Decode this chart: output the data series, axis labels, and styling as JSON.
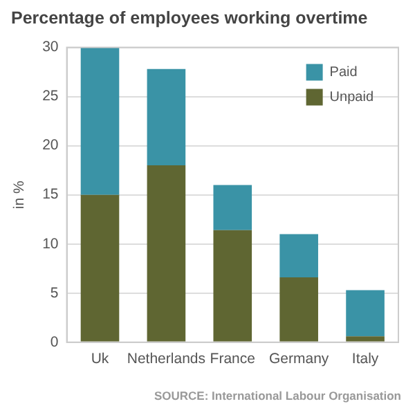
{
  "chart_data": {
    "type": "bar",
    "title": "Percentage of employees working overtime",
    "ylabel": "in %",
    "categories": [
      "Uk",
      "Netherlands",
      "France",
      "Germany",
      "Italy"
    ],
    "stacked": true,
    "series": [
      {
        "name": "Unpaid",
        "color": "#5f6632",
        "values": [
          15,
          18,
          11.4,
          6.6,
          0.6
        ]
      },
      {
        "name": "Paid",
        "color": "#3a93a6",
        "values": [
          15,
          9.8,
          4.6,
          4.4,
          4.7
        ]
      }
    ],
    "ylim": [
      0,
      30
    ],
    "yticks": [
      0,
      5,
      10,
      15,
      20,
      25,
      30
    ],
    "grid": "y",
    "legend": "top right",
    "annotations": [
      "SOURCE: International Labour Organisation"
    ]
  }
}
